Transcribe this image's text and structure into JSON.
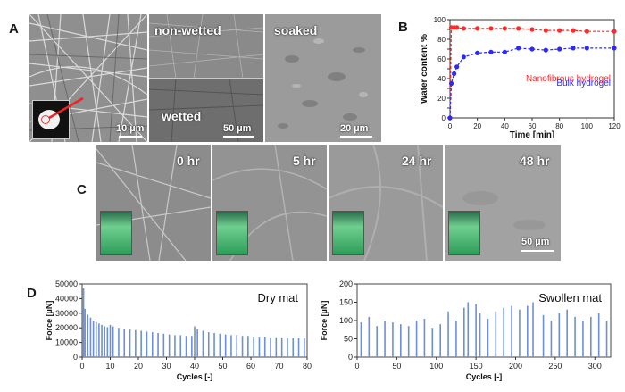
{
  "panels": {
    "a": {
      "letter": "A",
      "labels": {
        "non_wetted": "non-wetted",
        "wetted": "wetted",
        "soaked": "soaked"
      },
      "scalebars": [
        "10 µm",
        "50 µm",
        "20 µm"
      ]
    },
    "b": {
      "letter": "B"
    },
    "c": {
      "letter": "C",
      "times": [
        "0 hr",
        "5 hr",
        "24 hr",
        "48 hr"
      ],
      "scalebar": "50 µm"
    },
    "d": {
      "letter": "D"
    }
  },
  "chart_data": [
    {
      "id": "B",
      "type": "line",
      "title": "",
      "xlabel": "Time [min]",
      "ylabel": "Water content %",
      "xlim": [
        0,
        120
      ],
      "ylim": [
        0,
        100
      ],
      "xticks": [
        0,
        20,
        40,
        60,
        80,
        100,
        120
      ],
      "yticks": [
        0,
        10,
        20,
        30,
        40,
        50,
        60,
        70,
        80,
        90,
        100
      ],
      "series": [
        {
          "name": "Nanofibrous hydrogel",
          "color": "#ff2a2a",
          "x": [
            0,
            1,
            3,
            5,
            10,
            20,
            30,
            40,
            50,
            60,
            70,
            80,
            90,
            100,
            120
          ],
          "y": [
            0,
            92,
            92,
            92,
            91,
            91,
            91,
            91,
            91,
            90,
            89,
            89,
            89,
            88,
            88
          ]
        },
        {
          "name": "Bulk hydrogel",
          "color": "#2a2aff",
          "x": [
            0,
            1,
            3,
            5,
            10,
            20,
            30,
            40,
            50,
            60,
            70,
            80,
            90,
            100,
            120
          ],
          "y": [
            0,
            35,
            45,
            52,
            62,
            66,
            67,
            67,
            71,
            70,
            69,
            70,
            71,
            71,
            71
          ]
        }
      ]
    },
    {
      "id": "D-left",
      "type": "bar",
      "title": "Dry mat",
      "xlabel": "Cycles [-]",
      "ylabel": "Force [µN]",
      "xlim": [
        0,
        80
      ],
      "ylim": [
        0,
        50000
      ],
      "xticks": [
        0,
        10,
        20,
        30,
        40,
        50,
        60,
        70,
        80
      ],
      "yticks": [
        0,
        10000,
        20000,
        30000,
        40000,
        50000
      ],
      "yticklabels": [
        "0",
        "10000",
        "20000",
        "30000",
        "40000",
        "50000"
      ],
      "color": "#6d8fd8",
      "peaks": [
        [
          0.5,
          47000
        ],
        [
          1,
          33000
        ],
        [
          2,
          29000
        ],
        [
          3,
          27000
        ],
        [
          4,
          25000
        ],
        [
          5,
          24000
        ],
        [
          6,
          23000
        ],
        [
          7,
          22000
        ],
        [
          8,
          21000
        ],
        [
          9,
          20500
        ],
        [
          10,
          22000
        ],
        [
          11,
          21000
        ],
        [
          13,
          20000
        ],
        [
          15,
          19500
        ],
        [
          17,
          19000
        ],
        [
          19,
          18500
        ],
        [
          21,
          18000
        ],
        [
          23,
          17500
        ],
        [
          25,
          17000
        ],
        [
          27,
          16500
        ],
        [
          29,
          16000
        ],
        [
          31,
          15500
        ],
        [
          33,
          15000
        ],
        [
          35,
          15000
        ],
        [
          37,
          14500
        ],
        [
          39,
          14500
        ],
        [
          40,
          21000
        ],
        [
          41,
          19000
        ],
        [
          43,
          18000
        ],
        [
          45,
          17000
        ],
        [
          47,
          16500
        ],
        [
          49,
          16000
        ],
        [
          51,
          15500
        ],
        [
          53,
          15000
        ],
        [
          55,
          15000
        ],
        [
          57,
          14500
        ],
        [
          59,
          14500
        ],
        [
          61,
          14000
        ],
        [
          63,
          14000
        ],
        [
          65,
          14000
        ],
        [
          67,
          13500
        ],
        [
          69,
          13500
        ],
        [
          71,
          13500
        ],
        [
          73,
          13000
        ],
        [
          75,
          13000
        ],
        [
          77,
          13000
        ],
        [
          79,
          13000
        ]
      ]
    },
    {
      "id": "D-right",
      "type": "bar",
      "title": "Swollen mat",
      "xlabel": "Cycles [-]",
      "ylabel": "Force [µN]",
      "xlim": [
        0,
        320
      ],
      "ylim": [
        0,
        200
      ],
      "xticks": [
        0,
        50,
        100,
        150,
        200,
        250,
        300
      ],
      "yticks": [
        0,
        50,
        100,
        150,
        200
      ],
      "color": "#6d8fd8",
      "peaks": [
        [
          5,
          95
        ],
        [
          15,
          110
        ],
        [
          25,
          85
        ],
        [
          35,
          100
        ],
        [
          45,
          95
        ],
        [
          55,
          90
        ],
        [
          65,
          85
        ],
        [
          75,
          100
        ],
        [
          85,
          105
        ],
        [
          95,
          80
        ],
        [
          105,
          90
        ],
        [
          115,
          125
        ],
        [
          125,
          100
        ],
        [
          135,
          135
        ],
        [
          140,
          150
        ],
        [
          150,
          145
        ],
        [
          155,
          120
        ],
        [
          165,
          105
        ],
        [
          175,
          125
        ],
        [
          185,
          135
        ],
        [
          195,
          140
        ],
        [
          205,
          130
        ],
        [
          215,
          140
        ],
        [
          222,
          150
        ],
        [
          235,
          115
        ],
        [
          245,
          100
        ],
        [
          255,
          120
        ],
        [
          265,
          130
        ],
        [
          275,
          110
        ],
        [
          285,
          100
        ],
        [
          295,
          110
        ],
        [
          305,
          120
        ],
        [
          315,
          100
        ]
      ]
    }
  ]
}
